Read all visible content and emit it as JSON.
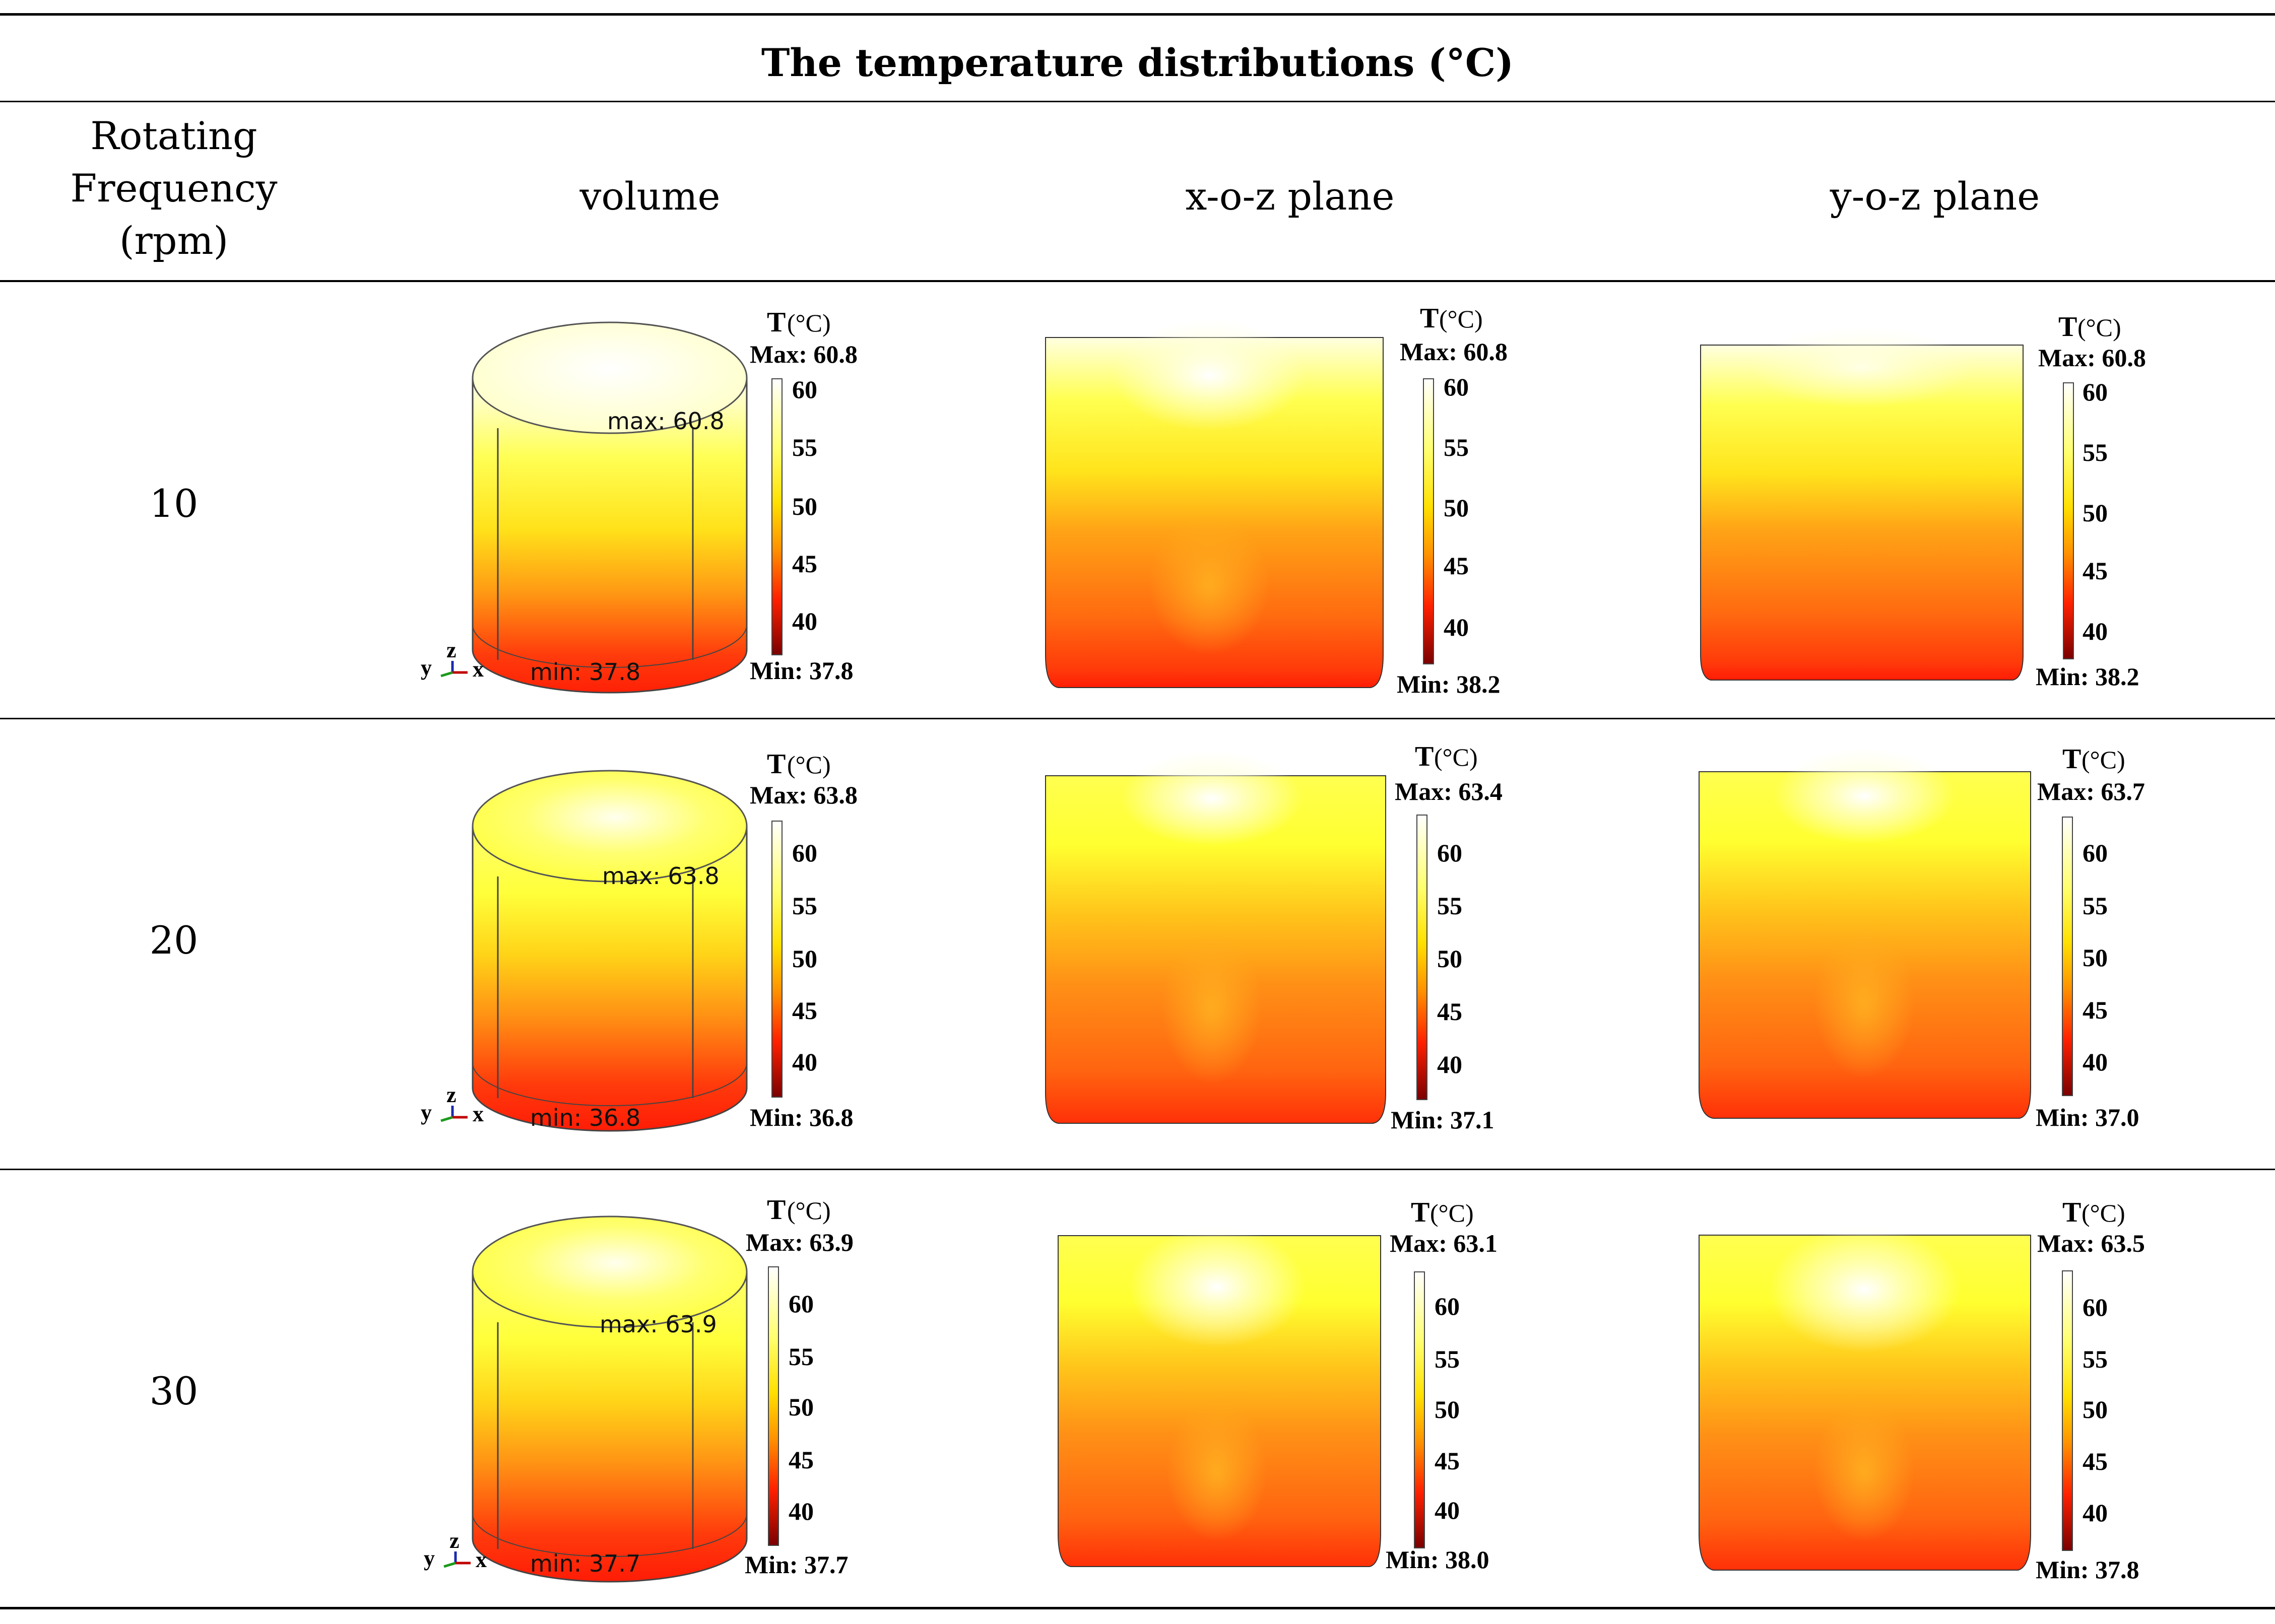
{
  "table": {
    "title": "The temperature distributions (°C)",
    "header": {
      "rotating_lines": [
        "Rotating",
        "Frequency",
        "(rpm)"
      ],
      "volume": "volume",
      "xoz": "x-o-z plane",
      "yoz": "y-o-z plane"
    },
    "rows": [
      {
        "rpm": "10",
        "volume": {
          "max_label": "Max: 60.8",
          "min_label": "Min: 37.8",
          "max_annot": "max: 60.8",
          "min_annot": "min: 37.8"
        },
        "xoz": {
          "max_label": "Max: 60.8",
          "min_label": "Min: 38.2"
        },
        "yoz": {
          "max_label": "Max: 60.8",
          "min_label": "Min: 38.2"
        }
      },
      {
        "rpm": "20",
        "volume": {
          "max_label": "Max: 63.8",
          "min_label": "Min: 36.8",
          "max_annot": "max: 63.8",
          "min_annot": "min: 36.8"
        },
        "xoz": {
          "max_label": "Max: 63.4",
          "min_label": "Min: 37.1"
        },
        "yoz": {
          "max_label": "Max: 63.7",
          "min_label": "Min: 37.0"
        }
      },
      {
        "rpm": "30",
        "volume": {
          "max_label": "Max: 63.9",
          "min_label": "Min: 37.7",
          "max_annot": "max: 63.9",
          "min_annot": "min: 37.7"
        },
        "xoz": {
          "max_label": "Max: 63.1",
          "min_label": "Min: 38.0"
        },
        "yoz": {
          "max_label": "Max: 63.5",
          "min_label": "Min: 37.8"
        }
      }
    ]
  },
  "legend": {
    "title": "T",
    "unit": "(°C)",
    "ticks": [
      "60",
      "55",
      "50",
      "45",
      "40"
    ]
  },
  "axis_triad": {
    "y": "y",
    "z": "z",
    "x": "x"
  },
  "colors": {
    "hot": "#fffff0",
    "warm": "#ffff33",
    "mid": "#ff9a1a",
    "cool": "#ff2a0a",
    "cold": "#8b0000"
  }
}
